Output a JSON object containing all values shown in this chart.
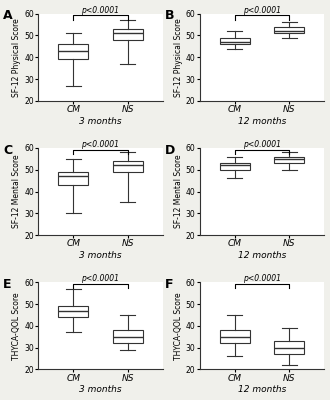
{
  "panels": [
    {
      "label": "A",
      "ylabel": "SF-12 Physical Score",
      "xlabel": "3 months",
      "ylim": [
        20,
        60
      ],
      "yticks": [
        20,
        30,
        40,
        50,
        60
      ],
      "groups": [
        "CM",
        "NS"
      ],
      "boxes": [
        {
          "whislo": 27,
          "q1": 39,
          "med": 43,
          "q3": 46,
          "whishi": 51
        },
        {
          "whislo": 37,
          "q1": 48,
          "med": 51,
          "q3": 53,
          "whishi": 57
        }
      ],
      "ptext": "p<0.0001"
    },
    {
      "label": "B",
      "ylabel": "SF-12 Physical Score",
      "xlabel": "12 months",
      "ylim": [
        20,
        60
      ],
      "yticks": [
        20,
        30,
        40,
        50,
        60
      ],
      "groups": [
        "CM",
        "NS"
      ],
      "boxes": [
        {
          "whislo": 44,
          "q1": 46,
          "med": 47,
          "q3": 49,
          "whishi": 52
        },
        {
          "whislo": 49,
          "q1": 51,
          "med": 52,
          "q3": 54,
          "whishi": 56
        }
      ],
      "ptext": "p<0.0001"
    },
    {
      "label": "C",
      "ylabel": "SF-12 Mental Score",
      "xlabel": "3 months",
      "ylim": [
        20,
        60
      ],
      "yticks": [
        20,
        30,
        40,
        50,
        60
      ],
      "groups": [
        "CM",
        "NS"
      ],
      "boxes": [
        {
          "whislo": 30,
          "q1": 43,
          "med": 47,
          "q3": 49,
          "whishi": 55
        },
        {
          "whislo": 35,
          "q1": 49,
          "med": 52,
          "q3": 54,
          "whishi": 58
        }
      ],
      "ptext": "p<0.0001"
    },
    {
      "label": "D",
      "ylabel": "SF-12 Mental Score",
      "xlabel": "12 months",
      "ylim": [
        20,
        60
      ],
      "yticks": [
        20,
        30,
        40,
        50,
        60
      ],
      "groups": [
        "CM",
        "NS"
      ],
      "boxes": [
        {
          "whislo": 46,
          "q1": 50,
          "med": 52,
          "q3": 53,
          "whishi": 56
        },
        {
          "whislo": 50,
          "q1": 53,
          "med": 55,
          "q3": 56,
          "whishi": 58
        }
      ],
      "ptext": "p<0.0001"
    },
    {
      "label": "E",
      "ylabel": "THYCA-QOL Score",
      "xlabel": "3 months",
      "ylim": [
        20,
        60
      ],
      "yticks": [
        20,
        30,
        40,
        50,
        60
      ],
      "groups": [
        "CM",
        "NS"
      ],
      "boxes": [
        {
          "whislo": 37,
          "q1": 44,
          "med": 47,
          "q3": 49,
          "whishi": 57
        },
        {
          "whislo": 29,
          "q1": 32,
          "med": 35,
          "q3": 38,
          "whishi": 45
        }
      ],
      "ptext": "p<0.0001"
    },
    {
      "label": "F",
      "ylabel": "THYCA-QOL Score",
      "xlabel": "12 months",
      "ylim": [
        20,
        60
      ],
      "yticks": [
        20,
        30,
        40,
        50,
        60
      ],
      "groups": [
        "CM",
        "NS"
      ],
      "boxes": [
        {
          "whislo": 26,
          "q1": 32,
          "med": 35,
          "q3": 38,
          "whishi": 45
        },
        {
          "whislo": 22,
          "q1": 27,
          "med": 30,
          "q3": 33,
          "whishi": 39
        }
      ],
      "ptext": "p<0.0001"
    }
  ],
  "box_facecolor": "#ffffff",
  "box_edgecolor": "#333333",
  "median_color": "#333333",
  "whisker_color": "#333333",
  "cap_color": "#333333",
  "box_width": 0.55,
  "background_color": "#ffffff",
  "fig_facecolor": "#f0f0eb"
}
